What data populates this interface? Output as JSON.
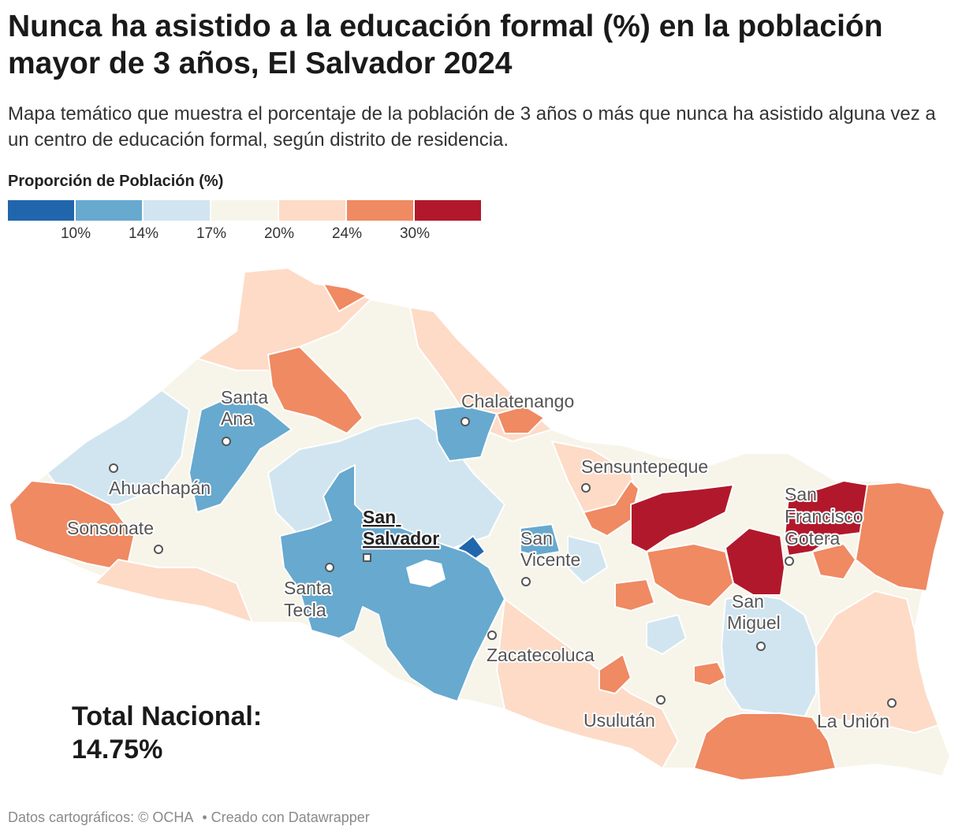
{
  "header": {
    "title": "Nunca ha asistido a la educación formal (%) en la población mayor de 3 años, El Salvador 2024",
    "subtitle": "Mapa temático que muestra el porcentaje de la población de 3 años o más que nunca ha asistido alguna vez a un centro de educación formal, según distrito de residencia."
  },
  "legend": {
    "title": "Proporción de Población (%)",
    "colors": [
      "#2166ac",
      "#67a9cf",
      "#d1e5f0",
      "#f7f4e9",
      "#fddbc7",
      "#ef8a62",
      "#b2182b"
    ],
    "ticks": [
      "10%",
      "14%",
      "17%",
      "20%",
      "24%",
      "30%"
    ]
  },
  "map": {
    "cities": {
      "santa_ana": [
        "Santa",
        "Ana"
      ],
      "chalatenango": "Chalatenango",
      "ahuachapan": "Ahuachapán",
      "sensuntepeque": "Sensuntepeque",
      "san_francisco_gotera": [
        "San",
        "Francisco",
        "Gotera"
      ],
      "sonsonate": "Sonsonate",
      "san_salvador": [
        "San",
        "Salvador"
      ],
      "san_vicente": [
        "San",
        "Vicente"
      ],
      "santa_tecla": [
        "Santa",
        "Tecla"
      ],
      "san_miguel": [
        "San",
        "Miguel"
      ],
      "zacatecoluca": "Zacatecoluca",
      "usulutan": "Usulután",
      "la_union": "La Unión"
    }
  },
  "summary": {
    "label": "Total Nacional:",
    "value": "14.75%"
  },
  "footer": {
    "source": "Datos cartográficos: © OCHA",
    "credit": "• Creado con Datawrapper"
  }
}
